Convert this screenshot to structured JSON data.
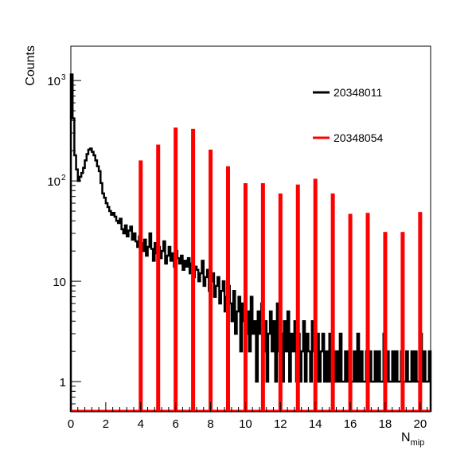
{
  "chart_data": {
    "type": "histogram",
    "title": "",
    "xlabel": "N",
    "xlabel_sub": "mip",
    "ylabel": "Counts",
    "xlim": [
      0,
      20.6
    ],
    "ylim": [
      0.5,
      2200
    ],
    "yscale": "log",
    "grid": false,
    "legend_placement": "top-right",
    "x_ticks": [
      0,
      2,
      4,
      6,
      8,
      10,
      12,
      14,
      16,
      18,
      20
    ],
    "y_ticks": [
      {
        "value": 1,
        "label": "1",
        "sup": ""
      },
      {
        "value": 10,
        "label": "10",
        "sup": ""
      },
      {
        "value": 100,
        "label": "10",
        "sup": "2"
      },
      {
        "value": 1000,
        "label": "10",
        "sup": "3"
      }
    ],
    "series": [
      {
        "name": "20348011",
        "color": "#000000",
        "style": "step",
        "bin_start": 0,
        "bin_width": 0.1,
        "values": [
          1150,
          420,
          180,
          130,
          100,
          110,
          120,
          135,
          160,
          185,
          205,
          210,
          195,
          180,
          160,
          140,
          125,
          95,
          75,
          68,
          60,
          55,
          50,
          46,
          48,
          44,
          40,
          38,
          42,
          33,
          30,
          36,
          28,
          32,
          35,
          26,
          30,
          25,
          22,
          28,
          24,
          20,
          26,
          18,
          22,
          30,
          21,
          16,
          24,
          19,
          22,
          17,
          20,
          25,
          15,
          18,
          22,
          16,
          19,
          14,
          20,
          17,
          15,
          18,
          13,
          16,
          14,
          17,
          12,
          15,
          11,
          14,
          13,
          10,
          12,
          16,
          9,
          11,
          13,
          8,
          10,
          12,
          7,
          9,
          11,
          6,
          8,
          10,
          5,
          7,
          9,
          6,
          4,
          8,
          3,
          5,
          7,
          2,
          6,
          4,
          3,
          5,
          2,
          7,
          3,
          4,
          1,
          5,
          3,
          6,
          2,
          4,
          1,
          3,
          5,
          2,
          4,
          1,
          6,
          2,
          3,
          1,
          4,
          2,
          5,
          1,
          3,
          2,
          4,
          1,
          3,
          1,
          2,
          4,
          1,
          3,
          2,
          1,
          4,
          2,
          1,
          3,
          1,
          2,
          3,
          1,
          2,
          1,
          3,
          1,
          2,
          1,
          2,
          1,
          3,
          1,
          1,
          2,
          1,
          2,
          1,
          1,
          2,
          1,
          3,
          1,
          2,
          1,
          1,
          2,
          1,
          2,
          1,
          1,
          2,
          1,
          2,
          1,
          1,
          3,
          1,
          2,
          1,
          1,
          2,
          1,
          2,
          1,
          1,
          2,
          1,
          1,
          2,
          1,
          1,
          2,
          1,
          2,
          1,
          1,
          3,
          1,
          2,
          1,
          1,
          2
        ]
      },
      {
        "name": "20348054",
        "color": "#ff0000",
        "style": "spikes",
        "x": [
          4,
          5,
          6,
          7,
          8,
          9,
          10,
          11,
          12,
          13,
          14,
          15,
          16,
          17,
          18,
          19,
          20
        ],
        "y": [
          160,
          230,
          340,
          330,
          205,
          140,
          95,
          95,
          75,
          92,
          105,
          75,
          47,
          48,
          31,
          31,
          49
        ]
      }
    ]
  }
}
